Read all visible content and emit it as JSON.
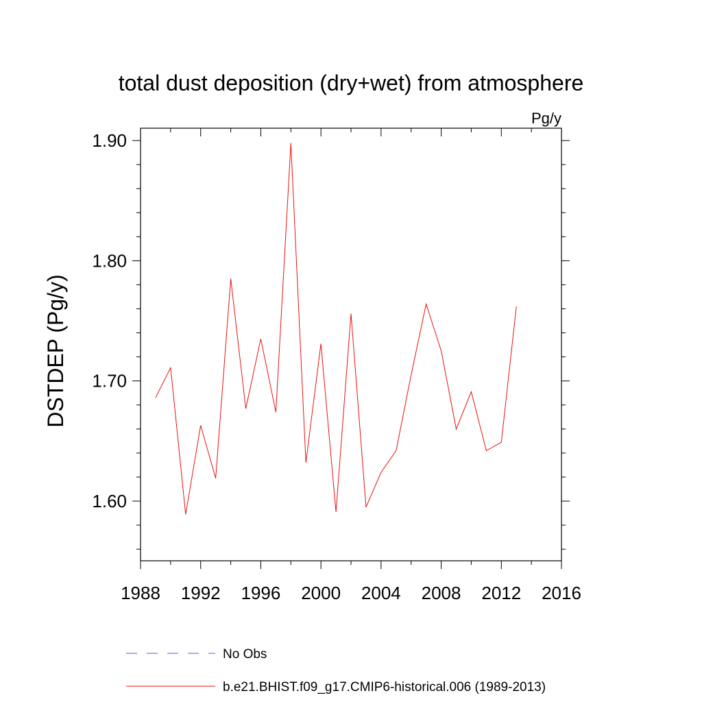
{
  "chart_data": {
    "type": "line",
    "title": "total dust deposition (dry+wet) from atmosphere",
    "units_label": "Pg/y",
    "ylabel": "DSTDEP  (Pg/y)",
    "xlabel": "",
    "xlim": [
      1988,
      2016
    ],
    "ylim": [
      1.55,
      1.91
    ],
    "x_major_ticks": [
      1988,
      1992,
      1996,
      2000,
      2004,
      2008,
      2012,
      2016
    ],
    "x_minor_step": 2,
    "y_major_ticks": [
      1.6,
      1.7,
      1.8,
      1.9
    ],
    "y_tick_labels": [
      "1.60",
      "1.70",
      "1.80",
      "1.90"
    ],
    "y_minor_step": 0.02,
    "grid": false,
    "series": [
      {
        "name": "b.e21.BHIST.f09_g17.CMIP6-historical.006 (1989-2013)",
        "color": "#e8100f",
        "dash": "solid",
        "x": [
          1989,
          1990,
          1991,
          1992,
          1993,
          1994,
          1995,
          1996,
          1997,
          1998,
          1999,
          2000,
          2001,
          2002,
          2003,
          2004,
          2005,
          2006,
          2007,
          2008,
          2009,
          2010,
          2011,
          2012,
          2013
        ],
        "values": [
          1.686,
          1.711,
          1.589,
          1.663,
          1.619,
          1.785,
          1.677,
          1.735,
          1.674,
          1.898,
          1.632,
          1.731,
          1.591,
          1.756,
          1.595,
          1.624,
          1.642,
          1.705,
          1.764,
          1.725,
          1.66,
          1.691,
          1.642,
          1.649,
          1.762
        ]
      }
    ],
    "legend": [
      {
        "label": "No Obs",
        "color": "#7b7bd6",
        "dash": "dashed"
      },
      {
        "label": "b.e21.BHIST.f09_g17.CMIP6-historical.006 (1989-2013)",
        "color": "#e8100f",
        "dash": "solid"
      }
    ]
  }
}
